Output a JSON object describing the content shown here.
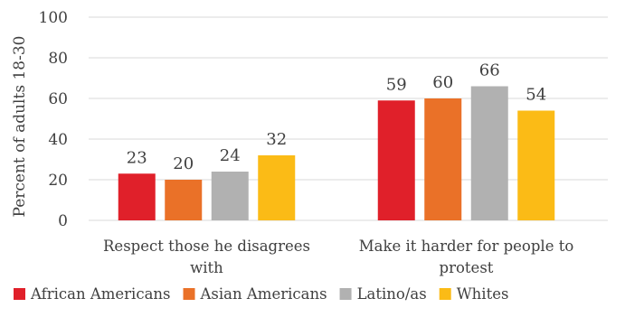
{
  "chart_data": {
    "type": "bar",
    "title": "",
    "xlabel": "",
    "ylabel": "Percent of adults 18-30",
    "ylim": [
      0,
      100
    ],
    "yticks": [
      0,
      20,
      40,
      60,
      80,
      100
    ],
    "grid": true,
    "legend_position": "bottom",
    "categories": [
      [
        "Respect those he disagrees",
        "with"
      ],
      [
        "Make it harder for people to",
        "protest"
      ]
    ],
    "series": [
      {
        "name": "African Americans",
        "color": "#e0202a",
        "values": [
          23,
          59
        ]
      },
      {
        "name": "Asian Americans",
        "color": "#ea7128",
        "values": [
          20,
          60
        ]
      },
      {
        "name": "Latino/as",
        "color": "#b1b1b1",
        "values": [
          24,
          66
        ]
      },
      {
        "name": "Whites",
        "color": "#fbbb16",
        "values": [
          32,
          54
        ]
      }
    ]
  }
}
